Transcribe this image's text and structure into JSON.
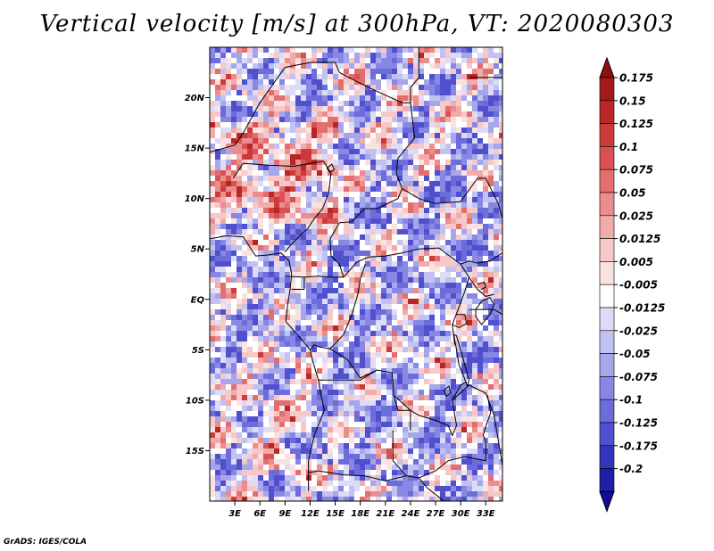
{
  "title": "Vertical velocity [m/s] at 300hPa, VT: 2020080303",
  "credit": "GrADS: IGES/COLA",
  "map": {
    "lon_range": [
      0,
      35
    ],
    "lat_range": [
      -20,
      25
    ],
    "lat_ticks": [
      {
        "lat": 20,
        "label": "20N"
      },
      {
        "lat": 15,
        "label": "15N"
      },
      {
        "lat": 10,
        "label": "10N"
      },
      {
        "lat": 5,
        "label": "5N"
      },
      {
        "lat": 0,
        "label": "EQ"
      },
      {
        "lat": -5,
        "label": "5S"
      },
      {
        "lat": -10,
        "label": "10S"
      },
      {
        "lat": -15,
        "label": "15S"
      }
    ],
    "lon_ticks": [
      {
        "lon": 3,
        "label": "3E"
      },
      {
        "lon": 6,
        "label": "6E"
      },
      {
        "lon": 9,
        "label": "9E"
      },
      {
        "lon": 12,
        "label": "12E"
      },
      {
        "lon": 15,
        "label": "15E"
      },
      {
        "lon": 18,
        "label": "18E"
      },
      {
        "lon": 21,
        "label": "21E"
      },
      {
        "lon": 24,
        "label": "24E"
      },
      {
        "lon": 27,
        "label": "27E"
      },
      {
        "lon": 30,
        "label": "30E"
      },
      {
        "lon": 33,
        "label": "33E"
      }
    ]
  },
  "colorbar": {
    "levels": [
      {
        "label": "0.175",
        "color": "#a31a1a"
      },
      {
        "label": "0.15",
        "color": "#b82626"
      },
      {
        "label": "0.125",
        "color": "#cc3a3a"
      },
      {
        "label": "0.1",
        "color": "#d95252"
      },
      {
        "label": "0.075",
        "color": "#e26e6e"
      },
      {
        "label": "0.05",
        "color": "#eb8d8d"
      },
      {
        "label": "0.025",
        "color": "#f2abab"
      },
      {
        "label": "0.0125",
        "color": "#f7c8c8"
      },
      {
        "label": "0.005",
        "color": "#fbe2e2"
      },
      {
        "label": "-0.005",
        "color": "#ffffff"
      },
      {
        "label": "-0.0125",
        "color": "#dcdcf7"
      },
      {
        "label": "-0.025",
        "color": "#c2c2f2"
      },
      {
        "label": "-0.05",
        "color": "#a6a6ec"
      },
      {
        "label": "-0.075",
        "color": "#8888e4"
      },
      {
        "label": "-0.1",
        "color": "#6c6cdb"
      },
      {
        "label": "-0.125",
        "color": "#5050cf"
      },
      {
        "label": "-0.175",
        "color": "#3434bd"
      },
      {
        "label": "-0.2",
        "color": "#2020a6"
      }
    ],
    "over_color": "#8c1010",
    "under_color": "#140c94"
  }
}
